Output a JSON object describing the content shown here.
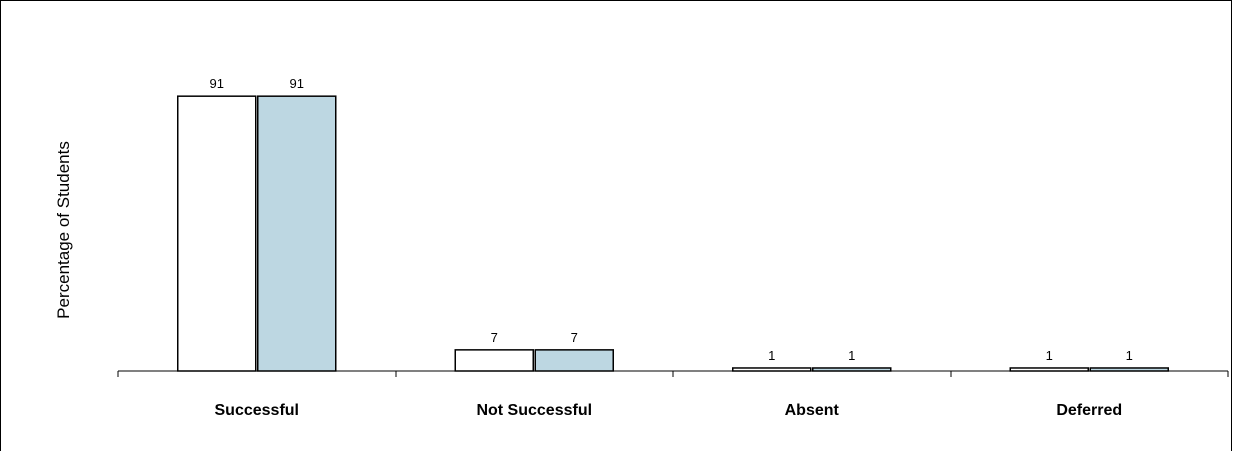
{
  "chart_data": {
    "type": "bar",
    "ylabel": "Percentage of Students",
    "xlabel": "",
    "categories": [
      "Successful",
      "Not Successful",
      "Absent",
      "Deferred"
    ],
    "series": [
      {
        "values": [
          91,
          7,
          1,
          1
        ],
        "color": "#ffffff"
      },
      {
        "values": [
          91,
          7,
          1,
          1
        ],
        "color": "#bdd7e2"
      }
    ],
    "data_labels": true,
    "ylim": [
      0,
      100
    ],
    "grid": false,
    "legend": "none"
  }
}
